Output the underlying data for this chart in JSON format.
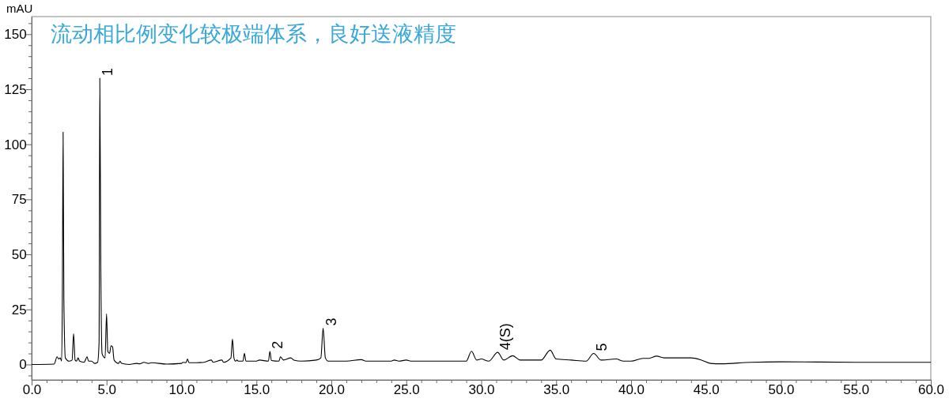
{
  "chart_data": {
    "type": "line",
    "title": "流动相比例变化较极端体系，良好送液精度",
    "ylabel": "mAU",
    "x": [
      0,
      1.5,
      1.7,
      1.8,
      1.9,
      2.0,
      2.05,
      2.1,
      2.15,
      2.25,
      2.5,
      2.7,
      2.8,
      2.9,
      3.0,
      3.1,
      3.2,
      3.5,
      3.7,
      3.8,
      4.0,
      4.2,
      4.4,
      4.5,
      4.55,
      4.62,
      4.7,
      4.8,
      4.9,
      5.0,
      5.08,
      5.2,
      5.3,
      5.4,
      5.5,
      5.8,
      5.9,
      6.0,
      6.5,
      7.0,
      7.2,
      7.5,
      7.8,
      8.0,
      9.0,
      10.0,
      10.1,
      10.3,
      10.4,
      10.5,
      11.0,
      11.5,
      12.0,
      12.1,
      12.7,
      12.8,
      13.3,
      13.4,
      13.5,
      13.6,
      13.7,
      13.8,
      14.1,
      14.2,
      14.3,
      15.0,
      15.2,
      15.8,
      15.9,
      16.0,
      16.5,
      16.6,
      16.8,
      17.3,
      17.5,
      18.0,
      19.0,
      19.3,
      19.45,
      19.6,
      19.8,
      21.0,
      22.0,
      22.3,
      24.0,
      24.2,
      24.5,
      25.0,
      25.3,
      29.0,
      29.35,
      29.7,
      30.0,
      30.5,
      31.1,
      31.5,
      32.1,
      32.6,
      34.0,
      34.6,
      35.0,
      36.0,
      37.0,
      37.5,
      38.0,
      39.0,
      39.5,
      40.0,
      40.8,
      41.2,
      41.7,
      42.2,
      44.0,
      44.7,
      45.3,
      46.0,
      48.0,
      50.0,
      55.0,
      60.0
    ],
    "series": [
      {
        "color": "#000000",
        "values": [
          0,
          0.2,
          3.5,
          2.5,
          3,
          1.5,
          30,
          105.5,
          30,
          3,
          1.5,
          2,
          14,
          2,
          1.5,
          3,
          1.5,
          1,
          3.5,
          1.5,
          1.5,
          0.5,
          1,
          10,
          130,
          40,
          5,
          3.5,
          3,
          23,
          6,
          5,
          8.5,
          8,
          2,
          0.5,
          1.5,
          0.5,
          0,
          0.5,
          0.3,
          1,
          0.5,
          0.8,
          0.2,
          0.5,
          1,
          0.8,
          2.5,
          0.8,
          0.8,
          1,
          2,
          1,
          2,
          1,
          3,
          11.5,
          3,
          1.5,
          2,
          1.5,
          1.5,
          5,
          1.5,
          1.5,
          2,
          1.5,
          6,
          1.8,
          1.5,
          3.5,
          2,
          3,
          2,
          1.5,
          2,
          3,
          16.5,
          3,
          1.5,
          1.5,
          2.2,
          1.5,
          1.5,
          2,
          1.5,
          2,
          1.5,
          1.5,
          6,
          2,
          2.5,
          1.5,
          5.5,
          2,
          4,
          2,
          2,
          6.5,
          2.5,
          2,
          1.5,
          5,
          2,
          2.5,
          1.5,
          1.5,
          2.8,
          2.8,
          3.8,
          3,
          3,
          2,
          0.5,
          0.3,
          1,
          1.2,
          1,
          1
        ]
      }
    ],
    "annotations": [
      {
        "text": "1",
        "x": 4.55,
        "y": 130
      },
      {
        "text": "2",
        "x": 15.9,
        "y": 6
      },
      {
        "text": "3",
        "x": 19.45,
        "y": 16.5
      },
      {
        "text": "4(S)",
        "x": 31.1,
        "y": 5.5
      },
      {
        "text": "5",
        "x": 37.5,
        "y": 5
      }
    ],
    "xlim": [
      0,
      60
    ],
    "ylim": [
      -7,
      158
    ],
    "xticks": [
      {
        "value": 0,
        "label": "0.0"
      },
      {
        "value": 1,
        "label": null
      },
      {
        "value": 2,
        "label": null
      },
      {
        "value": 3,
        "label": null
      },
      {
        "value": 4,
        "label": null
      },
      {
        "value": 5,
        "label": "5.0"
      },
      {
        "value": 6,
        "label": null
      },
      {
        "value": 7,
        "label": null
      },
      {
        "value": 8,
        "label": null
      },
      {
        "value": 9,
        "label": null
      },
      {
        "value": 10,
        "label": "10.0"
      },
      {
        "value": 11,
        "label": null
      },
      {
        "value": 12,
        "label": null
      },
      {
        "value": 13,
        "label": null
      },
      {
        "value": 14,
        "label": null
      },
      {
        "value": 15,
        "label": "15.0"
      },
      {
        "value": 16,
        "label": null
      },
      {
        "value": 17,
        "label": null
      },
      {
        "value": 18,
        "label": null
      },
      {
        "value": 19,
        "label": null
      },
      {
        "value": 20,
        "label": "20.0"
      },
      {
        "value": 21,
        "label": null
      },
      {
        "value": 22,
        "label": null
      },
      {
        "value": 23,
        "label": null
      },
      {
        "value": 24,
        "label": null
      },
      {
        "value": 25,
        "label": "25.0"
      },
      {
        "value": 26,
        "label": null
      },
      {
        "value": 27,
        "label": null
      },
      {
        "value": 28,
        "label": null
      },
      {
        "value": 29,
        "label": null
      },
      {
        "value": 30,
        "label": "30.0"
      },
      {
        "value": 31,
        "label": null
      },
      {
        "value": 32,
        "label": null
      },
      {
        "value": 33,
        "label": null
      },
      {
        "value": 34,
        "label": null
      },
      {
        "value": 35,
        "label": "35.0"
      },
      {
        "value": 36,
        "label": null
      },
      {
        "value": 37,
        "label": null
      },
      {
        "value": 38,
        "label": null
      },
      {
        "value": 39,
        "label": null
      },
      {
        "value": 40,
        "label": "40.0"
      },
      {
        "value": 41,
        "label": null
      },
      {
        "value": 42,
        "label": null
      },
      {
        "value": 43,
        "label": null
      },
      {
        "value": 44,
        "label": null
      },
      {
        "value": 45,
        "label": "45.0"
      },
      {
        "value": 46,
        "label": null
      },
      {
        "value": 47,
        "label": null
      },
      {
        "value": 48,
        "label": null
      },
      {
        "value": 49,
        "label": null
      },
      {
        "value": 50,
        "label": "50.0"
      },
      {
        "value": 51,
        "label": null
      },
      {
        "value": 52,
        "label": null
      },
      {
        "value": 53,
        "label": null
      },
      {
        "value": 54,
        "label": null
      },
      {
        "value": 55,
        "label": "55.0"
      },
      {
        "value": 56,
        "label": null
      },
      {
        "value": 57,
        "label": null
      },
      {
        "value": 58,
        "label": null
      },
      {
        "value": 59,
        "label": null
      },
      {
        "value": 60,
        "label": "60.0"
      }
    ],
    "yticks": [
      {
        "value": -5,
        "label": null
      },
      0,
      {
        "value": 5,
        "label": null
      },
      {
        "value": 10,
        "label": null
      },
      {
        "value": 15,
        "label": null
      },
      {
        "value": 20,
        "label": null
      },
      25,
      {
        "value": 30,
        "label": null
      },
      {
        "value": 35,
        "label": null
      },
      {
        "value": 40,
        "label": null
      },
      {
        "value": 45,
        "label": null
      },
      50,
      {
        "value": 55,
        "label": null
      },
      {
        "value": 60,
        "label": null
      },
      {
        "value": 65,
        "label": null
      },
      {
        "value": 70,
        "label": null
      },
      75,
      {
        "value": 80,
        "label": null
      },
      {
        "value": 85,
        "label": null
      },
      {
        "value": 90,
        "label": null
      },
      {
        "value": 95,
        "label": null
      },
      100,
      {
        "value": 105,
        "label": null
      },
      {
        "value": 110,
        "label": null
      },
      {
        "value": 115,
        "label": null
      },
      {
        "value": 120,
        "label": null
      },
      125,
      {
        "value": 130,
        "label": null
      },
      {
        "value": 135,
        "label": null
      },
      {
        "value": 140,
        "label": null
      },
      {
        "value": 145,
        "label": null
      },
      150,
      {
        "value": 155,
        "label": null
      }
    ],
    "grid": false
  }
}
